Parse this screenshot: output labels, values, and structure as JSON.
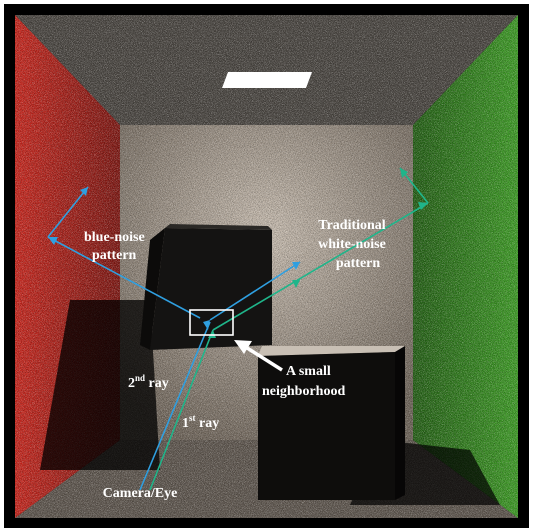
{
  "labels": {
    "blue_noise_line1": "blue-noise",
    "blue_noise_line2": "pattern",
    "white_noise_line1": "Traditional",
    "white_noise_line2": "white-noise",
    "white_noise_line3": "pattern",
    "neighborhood_line1": "A small",
    "neighborhood_line2": "neighborhood",
    "second_ray_num": "2",
    "second_ray_sup": "nd",
    "second_ray_word": " ray",
    "first_ray_num": "1",
    "first_ray_sup": "st",
    "first_ray_word": " ray",
    "camera": "Camera/Eye"
  },
  "colors": {
    "blue_noise_ray": "#2f9fe0",
    "white_noise_ray": "#1fb58a",
    "left_wall": "#b3221d",
    "right_wall": "#2f8a1e",
    "back_wall": "#8d8378",
    "ceiling": "#4a4641",
    "floor": "#5e564e",
    "light": "#ffffff",
    "neighborhood_box": "#ffffff"
  }
}
